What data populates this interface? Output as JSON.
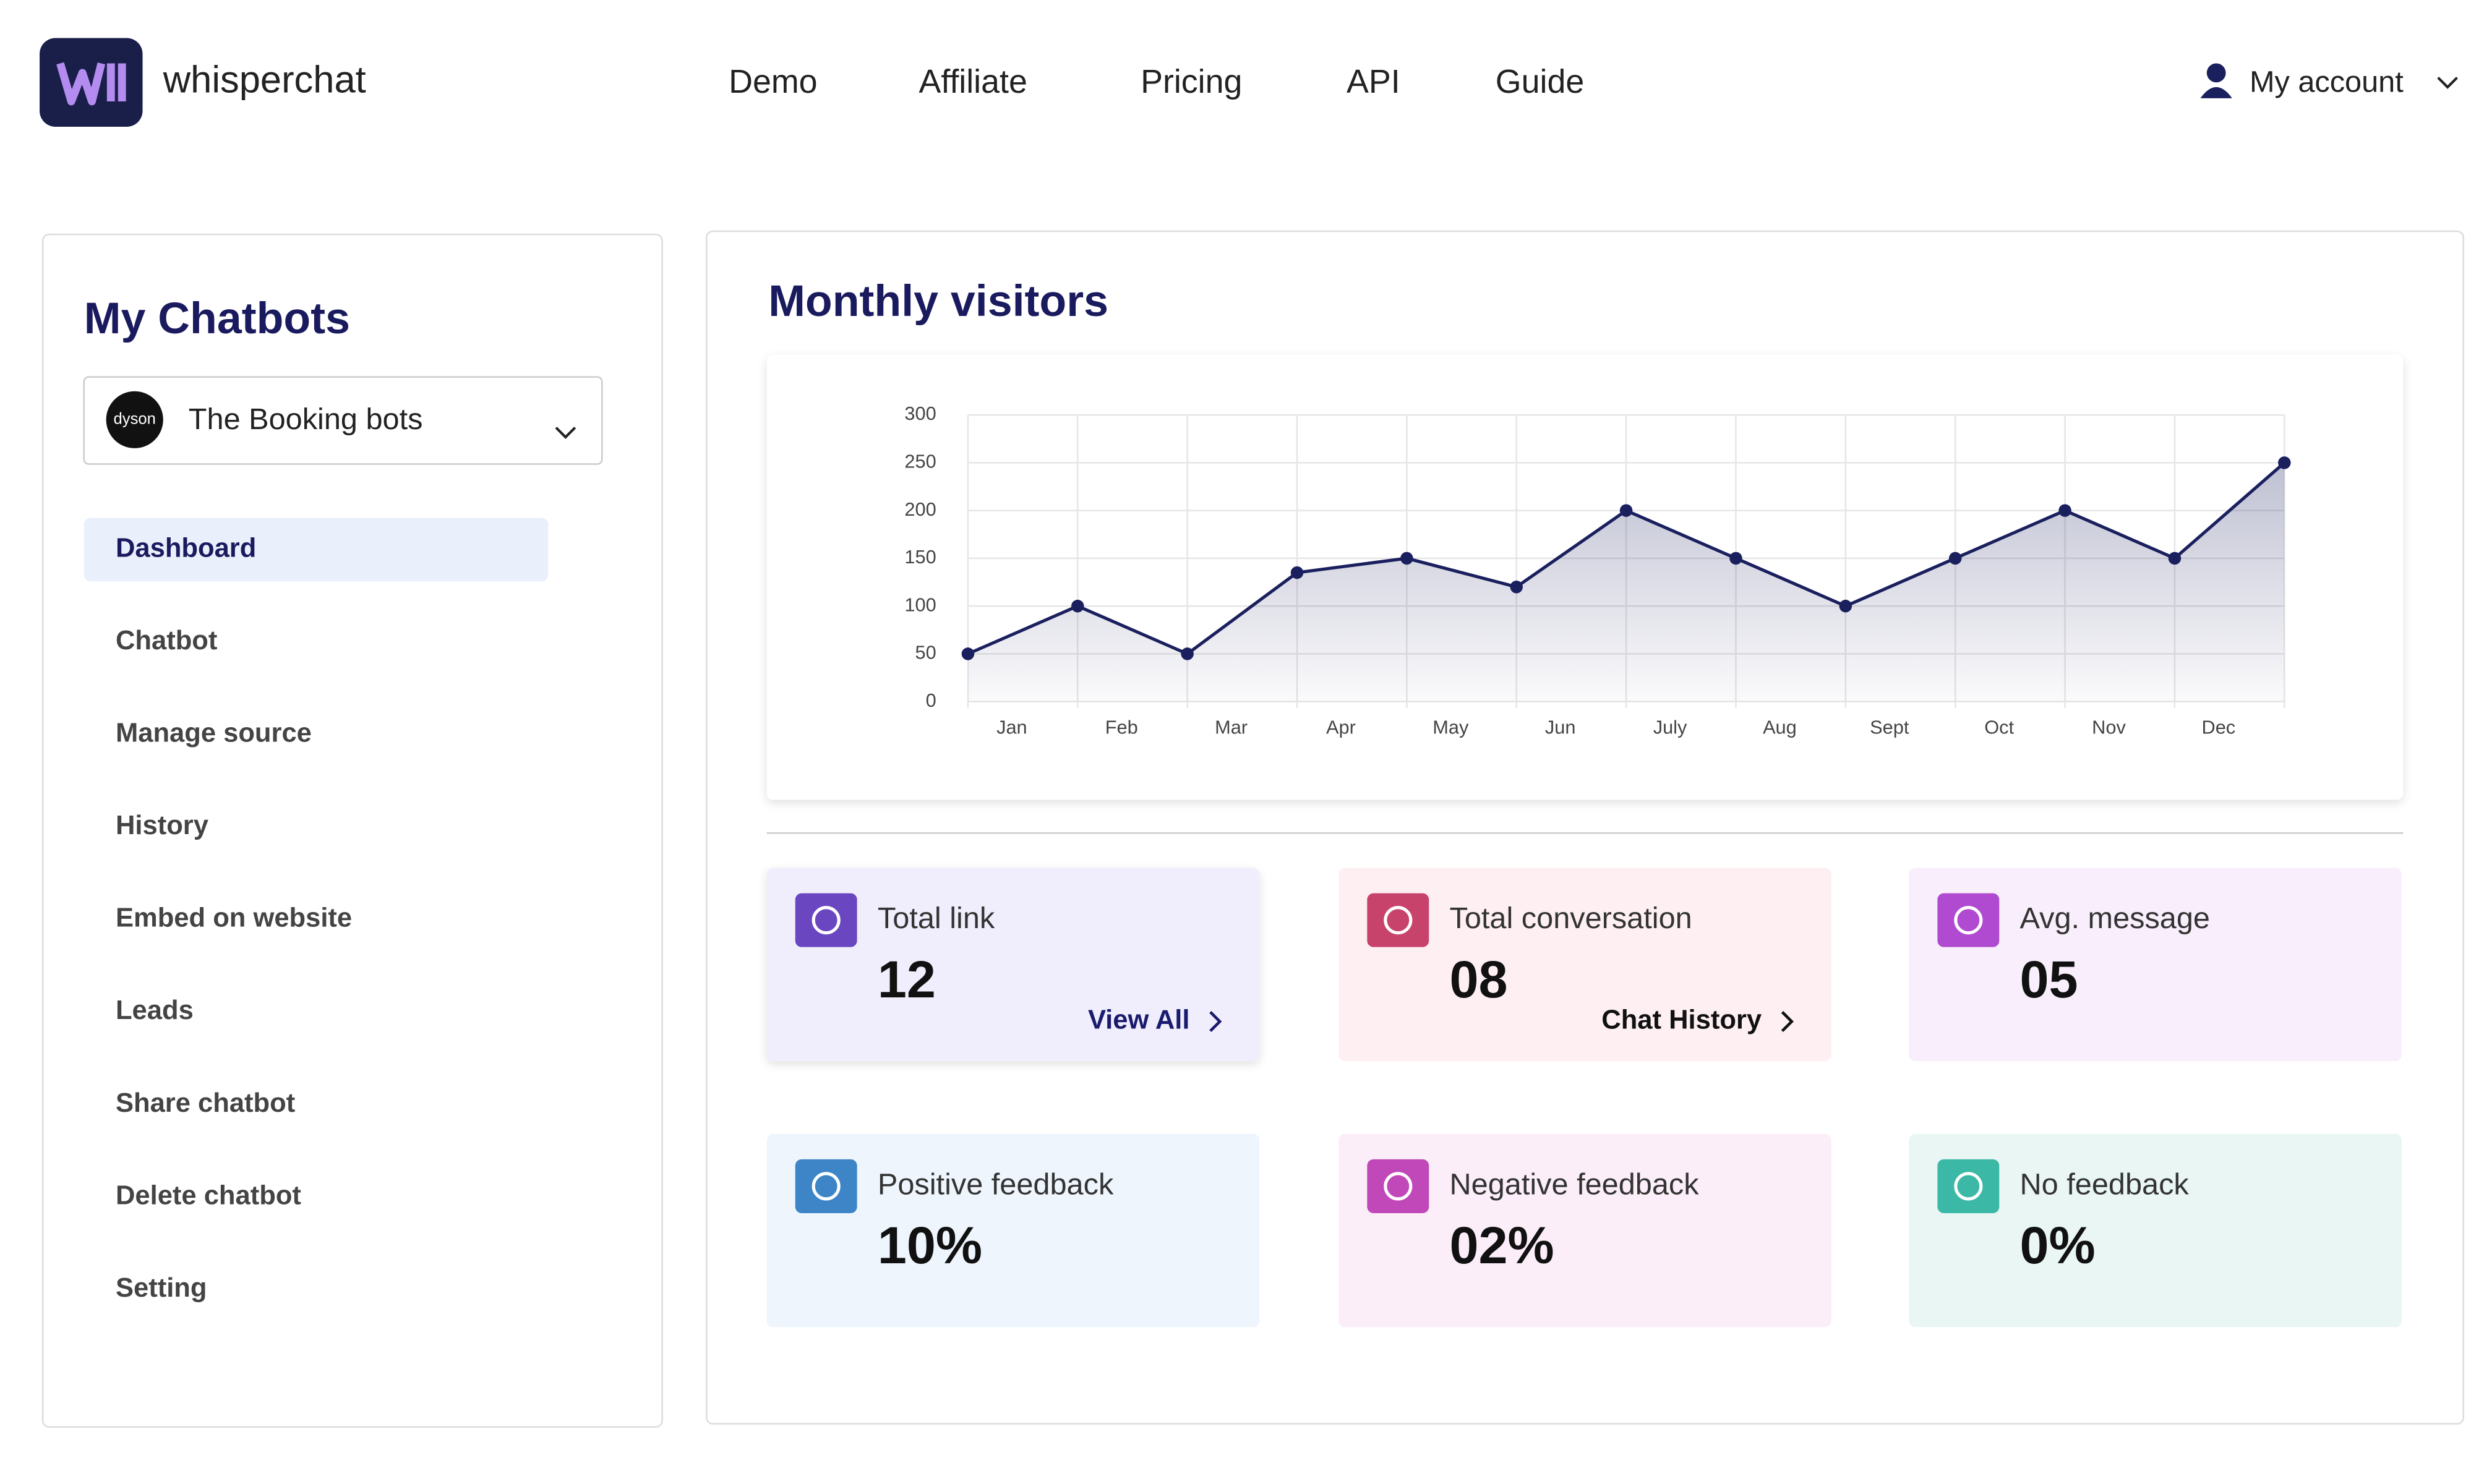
{
  "header": {
    "brand": "whisperchat",
    "nav": [
      "Demo",
      "Affiliate",
      "Pricing",
      "API",
      "Guide"
    ],
    "account": "My account"
  },
  "sidebar": {
    "title": "My Chatbots",
    "bot": {
      "logo": "dyson",
      "name": "The Booking bots"
    },
    "menu": [
      "Dashboard",
      "Chatbot",
      "Manage source",
      "History",
      "Embed on website",
      "Leads",
      "Share chatbot",
      "Delete chatbot",
      "Setting"
    ]
  },
  "chart_data": {
    "type": "line",
    "title": "Monthly visitors",
    "categories": [
      "Jan",
      "Feb",
      "Mar",
      "Apr",
      "May",
      "Jun",
      "July",
      "Aug",
      "Sept",
      "Oct",
      "Nov",
      "Dec",
      null
    ],
    "values": [
      50,
      100,
      50,
      135,
      150,
      120,
      200,
      150,
      100,
      150,
      200,
      150,
      250
    ],
    "color": "#1a1f5e",
    "ylim": [
      0,
      300
    ],
    "yticks": [
      0,
      50,
      100,
      150,
      200,
      250,
      300
    ],
    "grid": true
  },
  "stats": [
    {
      "label": "Total link",
      "value": "12",
      "link": "View All",
      "color": "#6b46c1",
      "bg": "#f0eefc"
    },
    {
      "label": "Total conversation",
      "value": "08",
      "link": "Chat History",
      "color": "#c8436b",
      "bg": "#fdeff2"
    },
    {
      "label": "Avg. message",
      "value": "05",
      "color": "#b04ad0",
      "bg": "#f9eefb"
    },
    {
      "label": "Positive feedback",
      "value": "10%",
      "color": "#3d85c6",
      "bg": "#eef5fd"
    },
    {
      "label": "Negative feedback",
      "value": "02%",
      "color": "#c048b8",
      "bg": "#fbeef9"
    },
    {
      "label": "No feedback",
      "value": "0%",
      "color": "#3bb8a6",
      "bg": "#e9f6f4"
    }
  ]
}
